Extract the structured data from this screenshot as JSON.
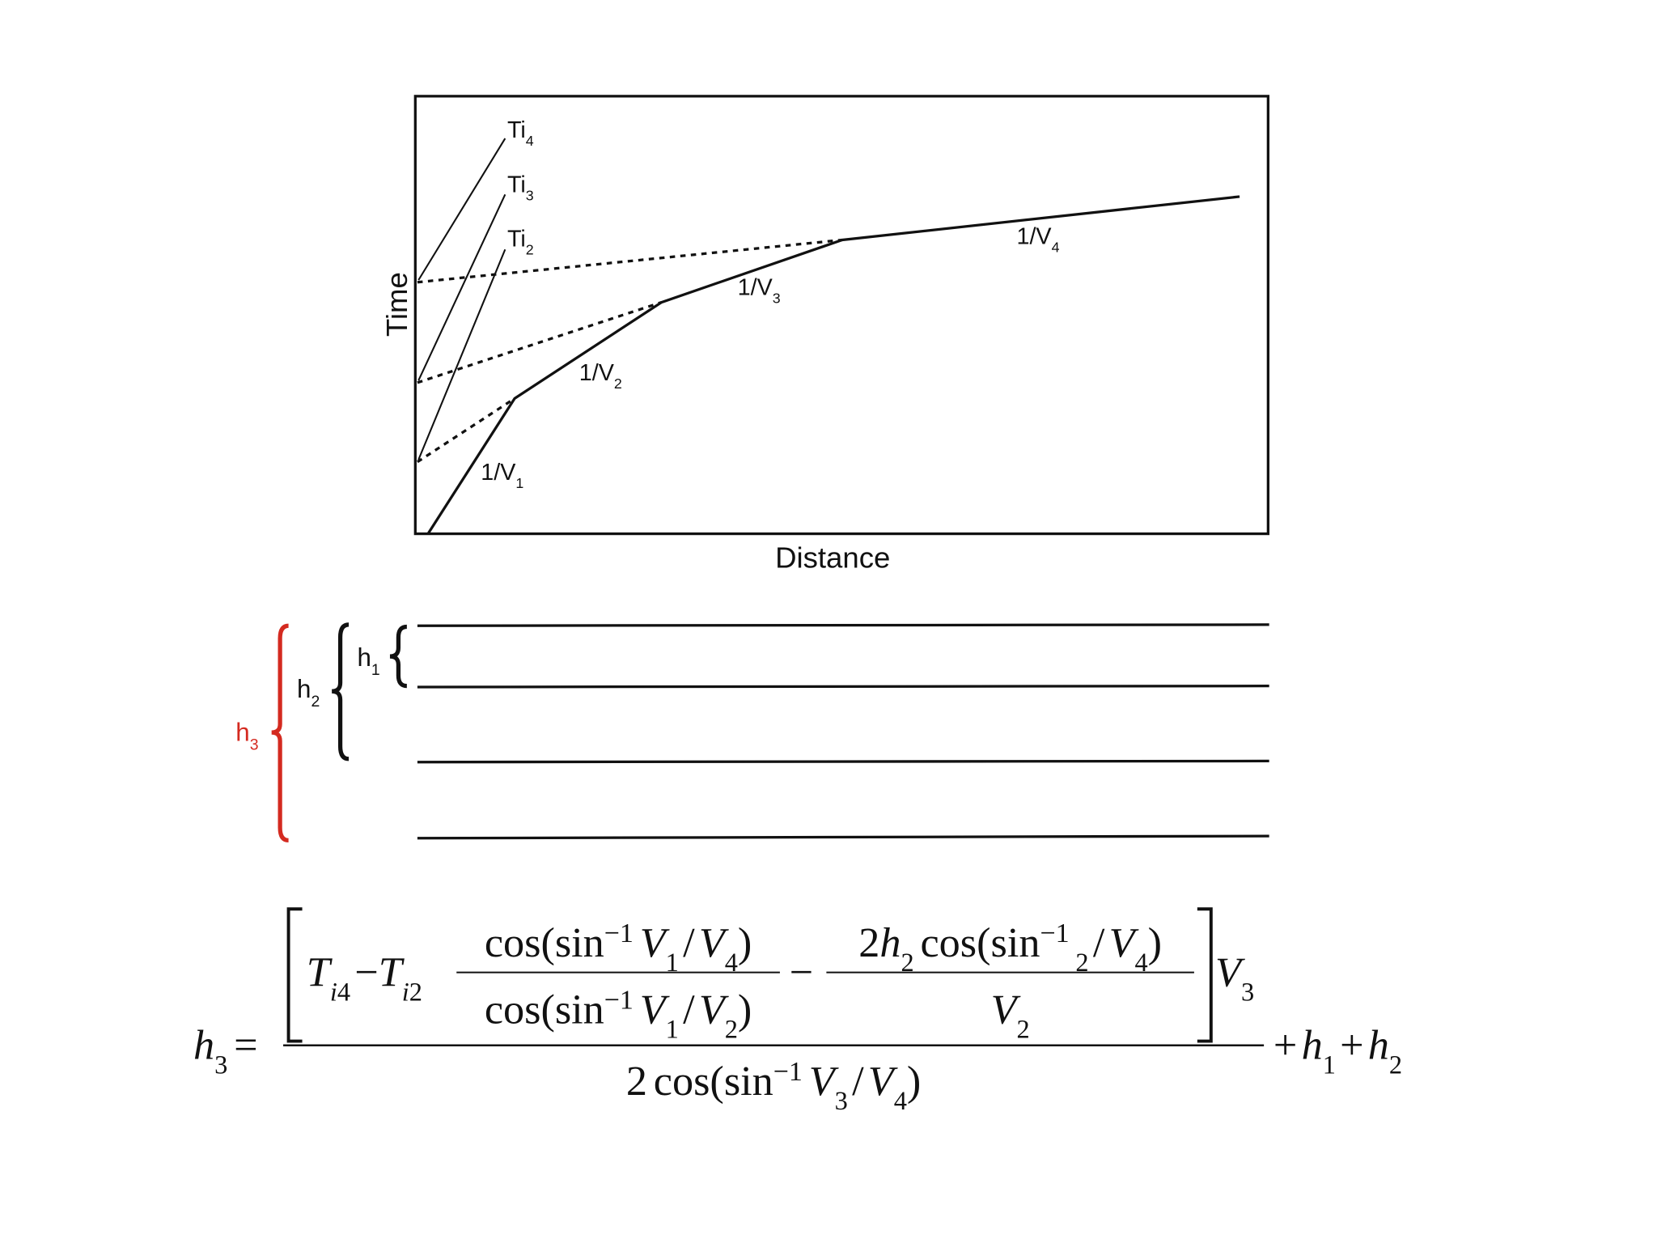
{
  "plot": {
    "y_label": "Time",
    "x_label": "Distance",
    "intercepts": [
      {
        "base": "Ti",
        "sub": "4"
      },
      {
        "base": "Ti",
        "sub": "3"
      },
      {
        "base": "Ti",
        "sub": "2"
      }
    ],
    "slopes": [
      {
        "base": "1/V",
        "sub": "1"
      },
      {
        "base": "1/V",
        "sub": "2"
      },
      {
        "base": "1/V",
        "sub": "3"
      },
      {
        "base": "1/V",
        "sub": "4"
      }
    ]
  },
  "layers": {
    "thickness_labels": [
      {
        "base": "h",
        "sub": "1"
      },
      {
        "base": "h",
        "sub": "2"
      },
      {
        "base": "h",
        "sub": "3"
      }
    ]
  },
  "formula": {
    "lhs": [
      "h",
      "3",
      "="
    ],
    "ti4": [
      "T",
      "i",
      "4"
    ],
    "minus": "−",
    "ti2": [
      "T",
      "i",
      "2"
    ],
    "frac1_num": [
      "cos(sin",
      "−1",
      "V",
      "1",
      "/",
      "V",
      "4",
      ")"
    ],
    "frac1_den": [
      "cos(sin",
      "−1",
      "V",
      "1",
      "/",
      "V",
      "2",
      ")"
    ],
    "minus2": "−",
    "frac2_num": [
      "2",
      "h",
      "2",
      "cos(sin",
      "−1",
      "2",
      "/",
      "V",
      "4",
      ")"
    ],
    "frac2_den": [
      "V",
      "2"
    ],
    "factor": [
      "V",
      "3"
    ],
    "denominator": [
      "2",
      "cos(sin",
      "−1",
      "V",
      "3",
      "/",
      "V",
      "4",
      ")"
    ],
    "tail": [
      "+",
      "h",
      "1",
      "+",
      "h",
      "2"
    ]
  }
}
